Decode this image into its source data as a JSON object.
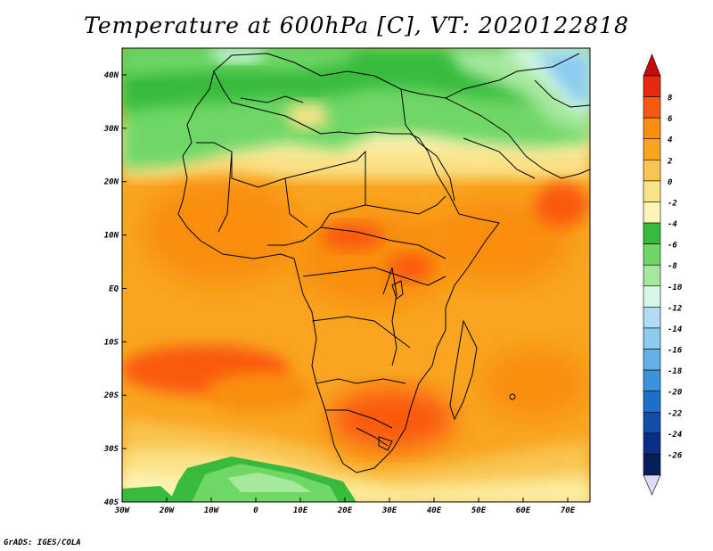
{
  "title": "Temperature at 600hPa [C], VT: 2020122818",
  "footer": "GrADS: IGES/COLA",
  "map": {
    "variable": "Temperature",
    "level": "600hPa",
    "units": "C",
    "valid_time": "2020122818",
    "lon_range": [
      -30,
      75
    ],
    "lat_range": [
      -40,
      45
    ],
    "lat_labels": [
      "40N",
      "30N",
      "20N",
      "10N",
      "EQ",
      "10S",
      "20S",
      "30S",
      "40S"
    ],
    "lon_labels": [
      "30W",
      "20W",
      "10W",
      "0",
      "10E",
      "20E",
      "30E",
      "40E",
      "50E",
      "60E",
      "70E"
    ]
  },
  "colorbar": {
    "labels": [
      "8",
      "6",
      "4",
      "2",
      "0",
      "-2",
      "-4",
      "-6",
      "-8",
      "-10",
      "-12",
      "-14",
      "-16",
      "-18",
      "-20",
      "-22",
      "-24",
      "-26"
    ],
    "colors": [
      "#e8290d",
      "#fa5a10",
      "#f98e10",
      "#f9a521",
      "#f9c450",
      "#fbe38a",
      "#fcf5b6",
      "#38bb3c",
      "#6fd766",
      "#a4e89b",
      "#d7f8e9",
      "#b0ddf5",
      "#8ccbef",
      "#62b2e9",
      "#3b93db",
      "#1d70c7",
      "#104ea7",
      "#0a2e86",
      "#081d5b"
    ],
    "top_arrow_color": "#c80a0a",
    "bottom_arrow_color": "#dcdcf8"
  }
}
